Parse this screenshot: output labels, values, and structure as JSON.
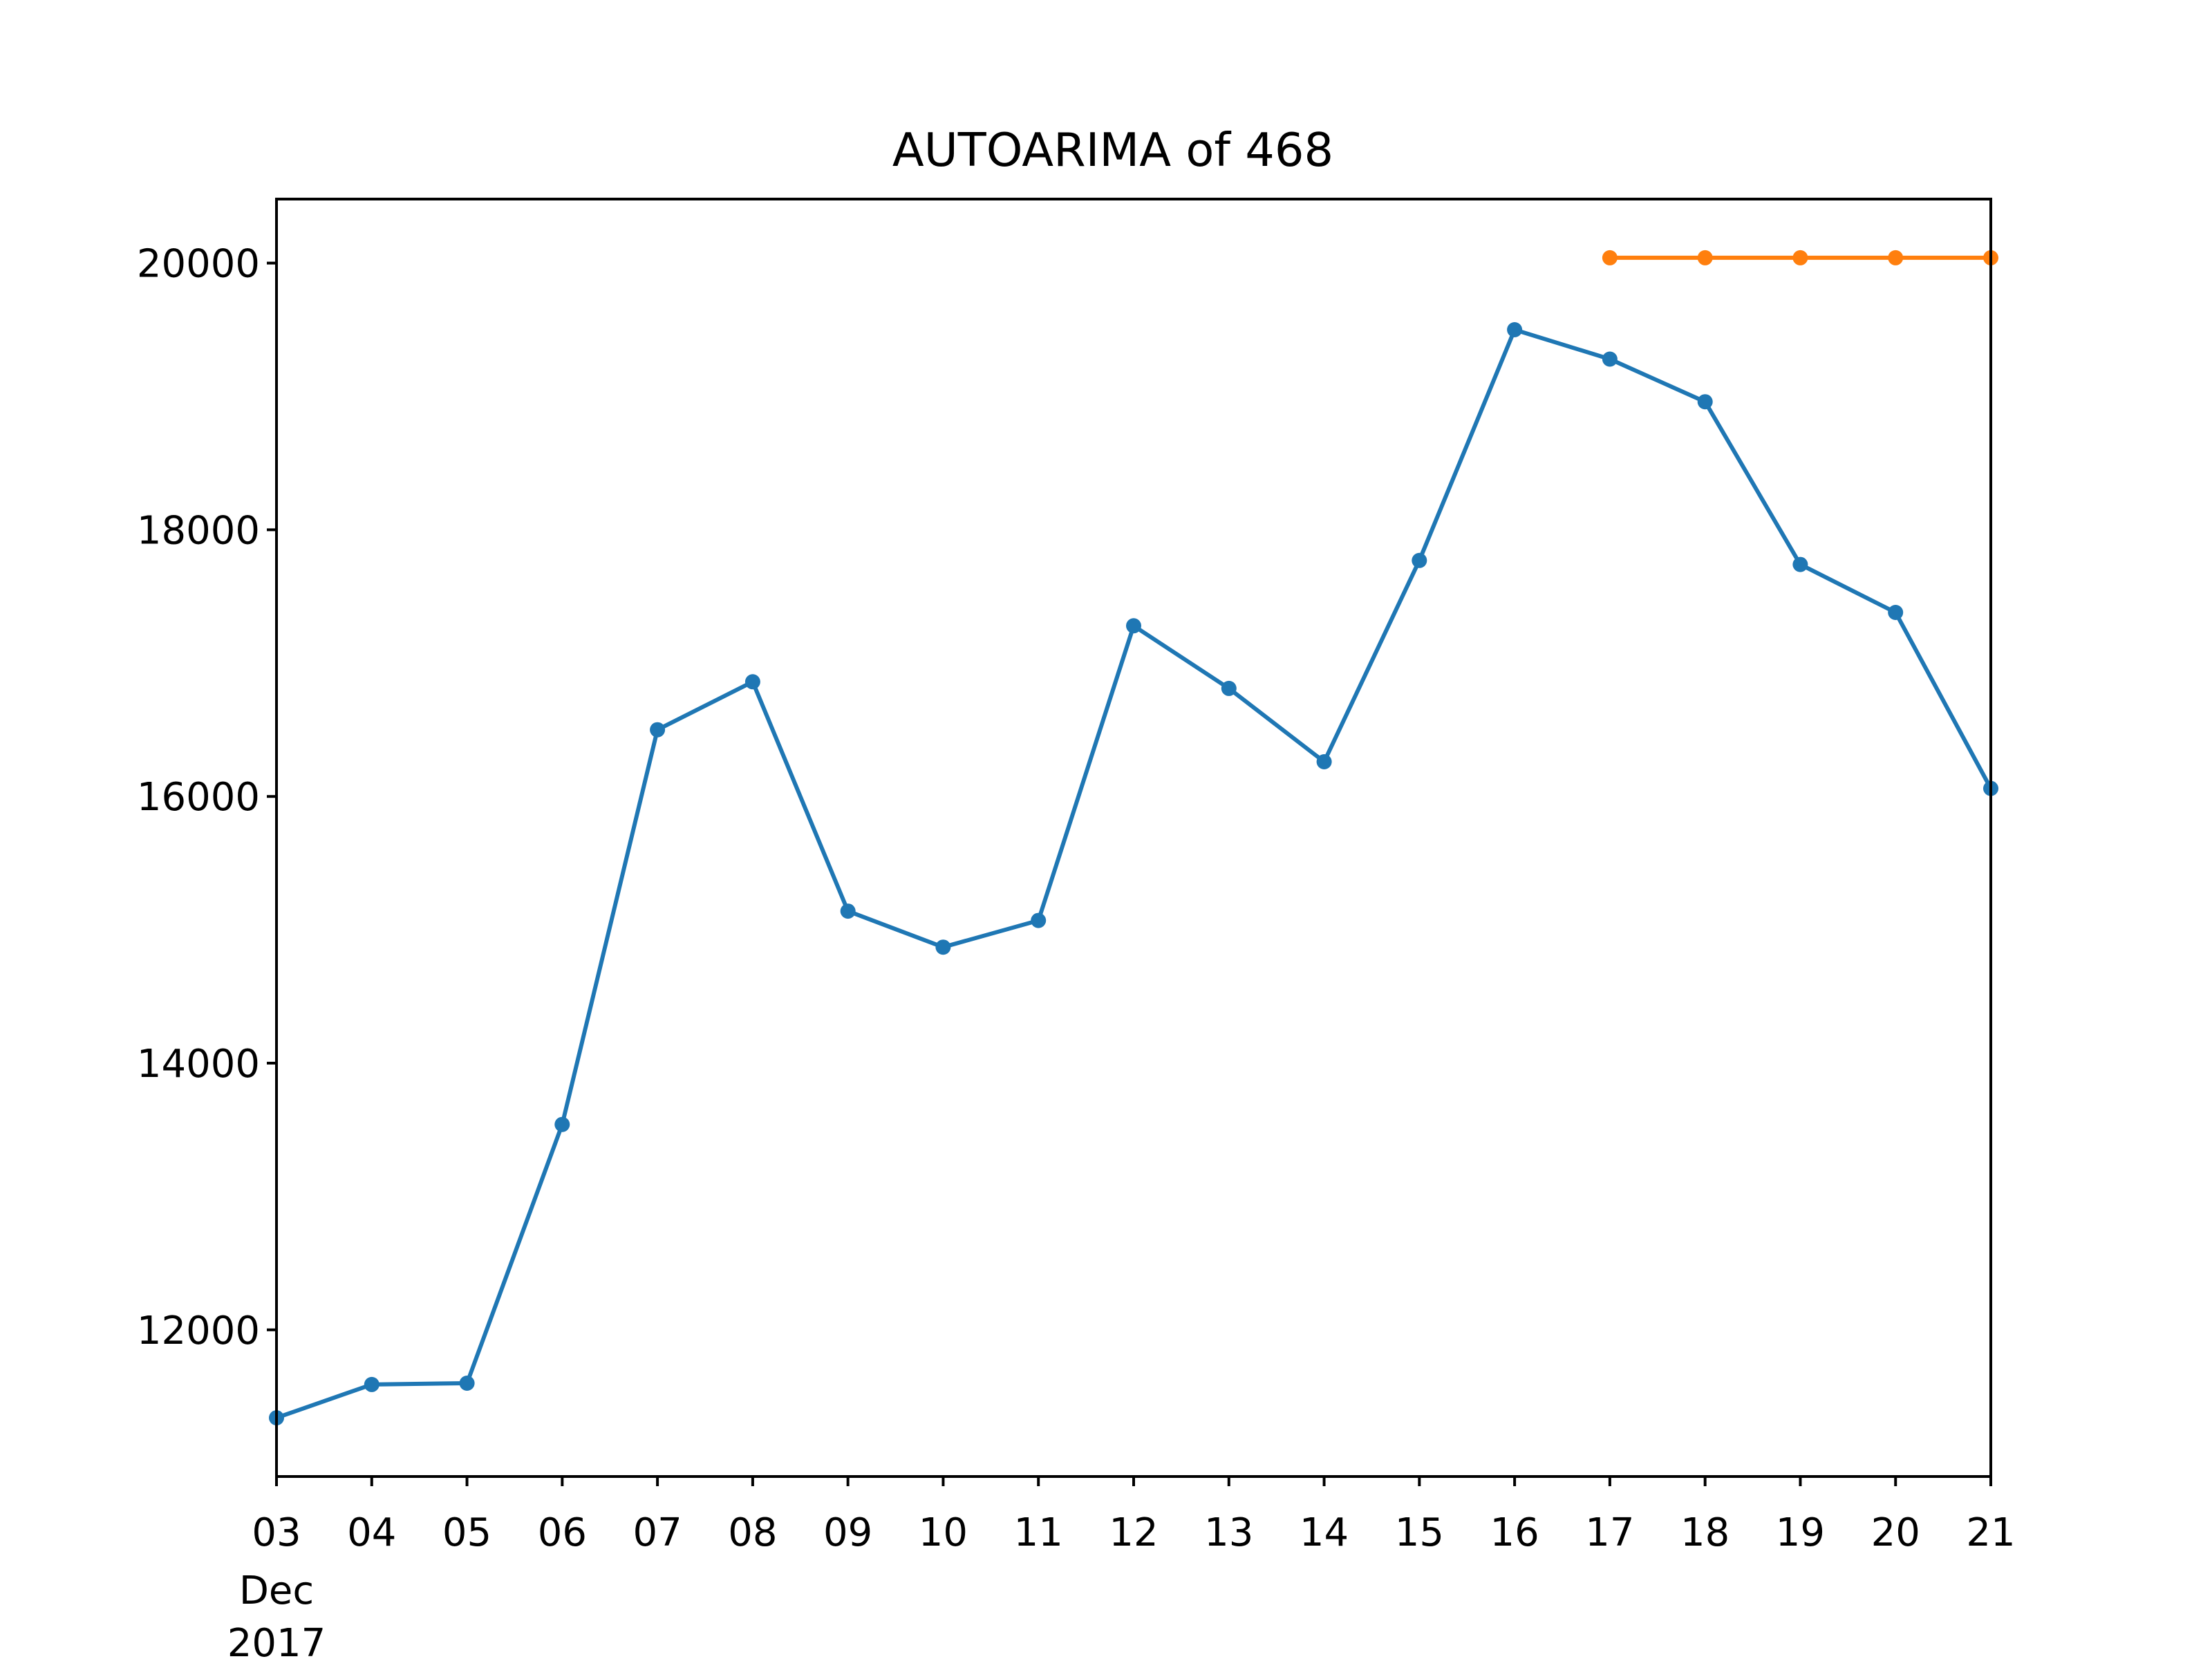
{
  "chart_data": {
    "type": "line",
    "title": "AUTOARIMA of 468",
    "xlabel": "",
    "ylabel": "",
    "x_ticks": [
      "03",
      "04",
      "05",
      "06",
      "07",
      "08",
      "09",
      "10",
      "11",
      "12",
      "13",
      "14",
      "15",
      "16",
      "17",
      "18",
      "19",
      "20",
      "21"
    ],
    "x_month_label": "Dec",
    "x_year_label": "2017",
    "xlim": [
      "2017-12-03",
      "2017-12-21"
    ],
    "ylim": [
      10900,
      20480
    ],
    "y_ticks": [
      12000,
      14000,
      16000,
      18000,
      20000
    ],
    "grid": false,
    "legend": "none",
    "series": [
      {
        "color": "#1f77b4",
        "x": [
          "2017-12-03",
          "2017-12-04",
          "2017-12-05",
          "2017-12-06",
          "2017-12-07",
          "2017-12-08",
          "2017-12-09",
          "2017-12-10",
          "2017-12-11",
          "2017-12-12",
          "2017-12-13",
          "2017-12-14",
          "2017-12-15",
          "2017-12-16",
          "2017-12-17",
          "2017-12-18",
          "2017-12-19",
          "2017-12-20",
          "2017-12-21"
        ],
        "values": [
          11340,
          11590,
          11600,
          13540,
          16500,
          16860,
          15140,
          14870,
          15070,
          17280,
          16810,
          16260,
          17770,
          19500,
          19280,
          18960,
          17740,
          17380,
          16060
        ]
      },
      {
        "color": "#ff7f0e",
        "x": [
          "2017-12-17",
          "2017-12-18",
          "2017-12-19",
          "2017-12-20",
          "2017-12-21"
        ],
        "values": [
          20040,
          20040,
          20040,
          20040,
          20040
        ]
      }
    ]
  }
}
